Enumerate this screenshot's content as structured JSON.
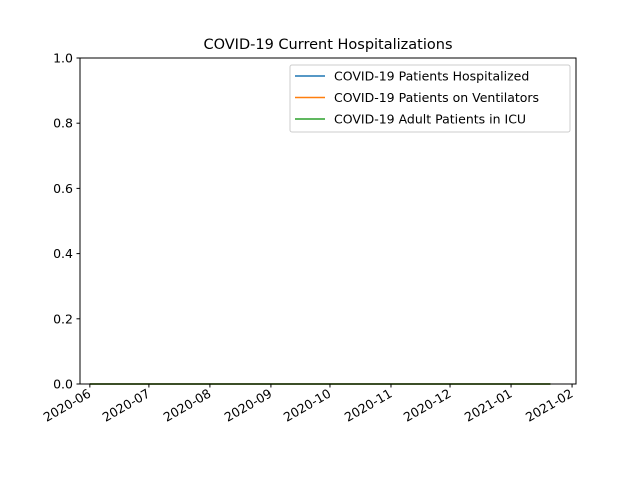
{
  "chart_data": {
    "type": "line",
    "title": "COVID-19 Current Hospitalizations",
    "xlabel": "",
    "ylabel": "",
    "x_range": [
      "2020-05-27",
      "2021-02-03"
    ],
    "ylim": [
      0,
      1.0
    ],
    "x_ticks": [
      "2020-06",
      "2020-07",
      "2020-08",
      "2020-09",
      "2020-10",
      "2020-11",
      "2020-12",
      "2021-01",
      "2021-02"
    ],
    "y_ticks": [
      "0.0",
      "0.2",
      "0.4",
      "0.6",
      "0.8",
      "1.0"
    ],
    "y_tick_values": [
      0,
      0.2,
      0.4,
      0.6,
      0.8,
      1.0
    ],
    "grid": false,
    "legend_position": "top-right",
    "x": [
      "2020-06-01",
      "2021-01-21"
    ],
    "series": [
      {
        "name": "COVID-19 Patients Hospitalized",
        "color": "#1f77b4",
        "values": [
          0,
          0
        ]
      },
      {
        "name": "COVID-19 Patients on Ventilators",
        "color": "#ff7f0e",
        "values": [
          0,
          0
        ]
      },
      {
        "name": "COVID-19 Adult Patients in ICU",
        "color": "#2ca02c",
        "values": [
          0,
          0
        ]
      }
    ]
  }
}
